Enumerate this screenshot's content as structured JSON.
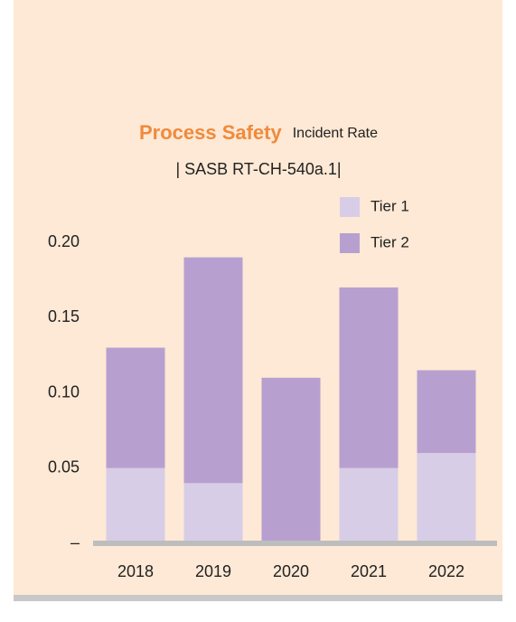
{
  "chart_data": {
    "type": "stacked_bar",
    "title": "Process Safety",
    "unit": "Incident Rate",
    "subtitle": "| SASB RT-CH-540a.1|",
    "categories": [
      "2018",
      "2019",
      "2020",
      "2021",
      "2022"
    ],
    "series": [
      {
        "name": "Tier 1",
        "color": "#d8cde6",
        "values": [
          0.05,
          0.04,
          0,
          0.05,
          0.06
        ]
      },
      {
        "name": "Tier 2",
        "color": "#b7a0cf",
        "values": [
          0.08,
          0.15,
          0.11,
          0.12,
          0.055
        ]
      }
    ],
    "ylim": [
      0,
      0.2
    ],
    "yticks": [
      {
        "value": 0,
        "label": "–"
      },
      0.05,
      {
        "value": 0.1,
        "label": "0.10"
      },
      0.15,
      {
        "value": 0.2,
        "label": "0.20"
      }
    ],
    "legend": "top-right"
  }
}
